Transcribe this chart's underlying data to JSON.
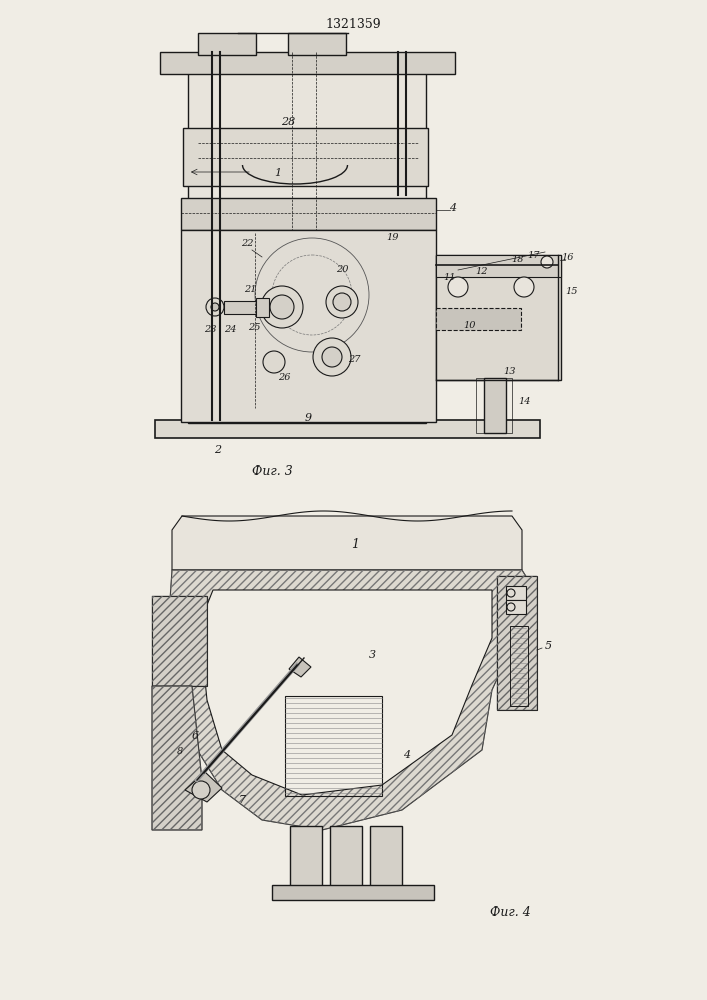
{
  "title": "1321359",
  "fig3_label": "Фиг. 3",
  "fig4_label": "Фиг. 4",
  "background_color": "#f5f5f0",
  "line_color": "#1a1a1a",
  "hatch_color": "#333333",
  "page_bg": "#f0ede5"
}
